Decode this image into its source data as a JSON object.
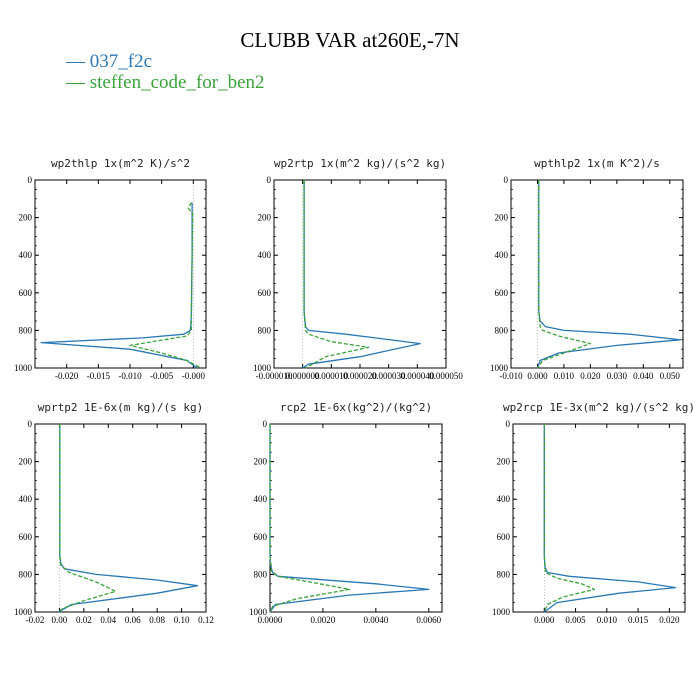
{
  "title": "CLUBB VAR at260E,-7N",
  "legend": [
    {
      "label": "037_f2c",
      "color": "#2a78b5"
    },
    {
      "label": "steffen_code_for_ben2",
      "color": "#3aa33a"
    }
  ],
  "chart_data": [
    {
      "type": "line",
      "title": "wp2thlp   1x(m^2 K)/s^2",
      "xlim": [
        -0.025,
        0.002
      ],
      "ylim": [
        1000,
        0
      ],
      "xticks": [
        -0.02,
        -0.015,
        -0.01,
        -0.005,
        0.0
      ],
      "xtick_labels": [
        "-0.020",
        "-0.015",
        "-0.010",
        "-0.005",
        "-0.000"
      ],
      "yticks": [
        0,
        200,
        400,
        600,
        800,
        1000
      ],
      "ytick_labels": [
        "0",
        "200",
        "400",
        "600",
        "800",
        "1000"
      ],
      "series": [
        {
          "name": "037_f2c",
          "style": "solid",
          "x": [
            -0.0002,
            -0.0002,
            -0.0003,
            -0.0004,
            -0.0005,
            -0.0015,
            -0.008,
            -0.024,
            -0.01,
            -0.001,
            0.0006
          ],
          "y": [
            120,
            400,
            700,
            780,
            800,
            820,
            840,
            865,
            900,
            960,
            1000
          ]
        },
        {
          "name": "steffen_code_for_ben2",
          "style": "dashed",
          "x": [
            -0.0003,
            -0.0008,
            -0.0001,
            -0.0002,
            -0.0003,
            -0.0003,
            -0.001,
            -0.01,
            -0.005,
            -0.001,
            0.0012
          ],
          "y": [
            120,
            150,
            180,
            400,
            700,
            800,
            830,
            880,
            920,
            960,
            1000
          ]
        }
      ]
    },
    {
      "type": "line",
      "title": "wp2rtp   1x(m^2 kg)/(s^2 kg)",
      "xlim": [
        -1e-05,
        5e-05
      ],
      "ylim": [
        1000,
        0
      ],
      "xticks": [
        -1e-05,
        0.0,
        1e-05,
        2e-05,
        3e-05,
        4e-05,
        5e-05
      ],
      "xtick_labels": [
        "-0.000010",
        "0.000000",
        "0.000010",
        "0.000020",
        "0.000030",
        "0.000040",
        "0.000050"
      ],
      "yticks": [
        0,
        200,
        400,
        600,
        800,
        1000
      ],
      "ytick_labels": [
        "0",
        "200",
        "400",
        "600",
        "800",
        "1000"
      ],
      "series": [
        {
          "name": "037_f2c",
          "style": "solid",
          "x": [
            5e-07,
            5e-07,
            1e-06,
            2e-06,
            1.5e-05,
            4.1e-05,
            2e-05,
            2e-06,
            0.0
          ],
          "y": [
            0,
            700,
            780,
            800,
            820,
            870,
            940,
            980,
            1000
          ]
        },
        {
          "name": "steffen_code_for_ben2",
          "style": "dashed",
          "x": [
            5e-07,
            5e-07,
            1e-06,
            2e-06,
            1e-05,
            2.3e-05,
            8e-06,
            1e-06
          ],
          "y": [
            0,
            700,
            800,
            820,
            860,
            890,
            940,
            1000
          ]
        }
      ]
    },
    {
      "type": "line",
      "title": "wpthlp2   1x(m K^2)/s",
      "xlim": [
        -0.01,
        0.055
      ],
      "ylim": [
        1000,
        0
      ],
      "xticks": [
        -0.01,
        0.0,
        0.01,
        0.02,
        0.03,
        0.04,
        0.05
      ],
      "xtick_labels": [
        "-0.010",
        "0.000",
        "0.010",
        "0.020",
        "0.030",
        "0.040",
        "0.050"
      ],
      "yticks": [
        0,
        200,
        400,
        600,
        800,
        1000
      ],
      "ytick_labels": [
        "0",
        "200",
        "400",
        "600",
        "800",
        "1000"
      ],
      "series": [
        {
          "name": "037_f2c",
          "style": "solid",
          "x": [
            0.0005,
            0.0005,
            0.001,
            0.003,
            0.01,
            0.035,
            0.054,
            0.03,
            0.008,
            0.001,
            0.0
          ],
          "y": [
            0,
            700,
            750,
            780,
            800,
            820,
            850,
            880,
            920,
            960,
            1000
          ]
        },
        {
          "name": "steffen_code_for_ben2",
          "style": "dashed",
          "x": [
            0.0005,
            0.0005,
            0.001,
            0.002,
            0.008,
            0.02,
            0.01,
            0.002,
            0.0
          ],
          "y": [
            0,
            700,
            780,
            800,
            830,
            870,
            920,
            960,
            1000
          ]
        }
      ]
    },
    {
      "type": "line",
      "title": "wprtp2   1E-6x(m kg)/(s kg)",
      "xlim": [
        -0.02,
        0.12
      ],
      "ylim": [
        1000,
        0
      ],
      "xticks": [
        -0.02,
        0.0,
        0.02,
        0.04,
        0.06,
        0.08,
        0.1,
        0.12
      ],
      "xtick_labels": [
        "-0.02",
        "0.00",
        "0.02",
        "0.04",
        "0.06",
        "0.08",
        "0.10",
        "0.12"
      ],
      "yticks": [
        0,
        200,
        400,
        600,
        800,
        1000
      ],
      "ytick_labels": [
        "0",
        "200",
        "400",
        "600",
        "800",
        "1000"
      ],
      "series": [
        {
          "name": "037_f2c",
          "style": "solid",
          "x": [
            0.0003,
            0.0003,
            0.001,
            0.004,
            0.03,
            0.08,
            0.113,
            0.08,
            0.01,
            -0.001
          ],
          "y": [
            0,
            700,
            740,
            770,
            800,
            830,
            860,
            900,
            960,
            1000
          ]
        },
        {
          "name": "steffen_code_for_ben2",
          "style": "dashed",
          "x": [
            0.0003,
            0.0003,
            0.001,
            0.008,
            0.03,
            0.046,
            0.02,
            0.003,
            -0.001
          ],
          "y": [
            0,
            700,
            750,
            790,
            840,
            890,
            940,
            980,
            1000
          ]
        }
      ]
    },
    {
      "type": "line",
      "title": "rcp2   1E-6x(kg^2)/(kg^2)",
      "xlim": [
        0.0,
        0.0065
      ],
      "ylim": [
        1000,
        0
      ],
      "xticks": [
        0.0,
        0.002,
        0.004,
        0.006
      ],
      "xtick_labels": [
        "0.0000",
        "0.0020",
        "0.0040",
        "0.0060"
      ],
      "yticks": [
        0,
        200,
        400,
        600,
        800,
        1000
      ],
      "ytick_labels": [
        "0",
        "200",
        "400",
        "600",
        "800",
        "1000"
      ],
      "series": [
        {
          "name": "037_f2c",
          "style": "solid",
          "x": [
            0.0,
            0.0,
            2e-05,
            0.0001,
            0.0003,
            0.004,
            0.006,
            0.003,
            0.0002,
            0.0
          ],
          "y": [
            0,
            700,
            750,
            790,
            810,
            850,
            880,
            910,
            960,
            1000
          ]
        },
        {
          "name": "steffen_code_for_ben2",
          "style": "dashed",
          "x": [
            0.0,
            0.0,
            5e-05,
            0.0003,
            0.0015,
            0.003,
            0.001,
            0.0001,
            0.0
          ],
          "y": [
            0,
            700,
            780,
            810,
            840,
            880,
            930,
            970,
            1000
          ]
        }
      ]
    },
    {
      "type": "line",
      "title": "wp2rcp   1E-3x(m^2 kg)/(s^2 kg)",
      "xlim": [
        -0.005,
        0.0225
      ],
      "ylim": [
        1000,
        0
      ],
      "xticks": [
        0.0,
        0.005,
        0.01,
        0.015,
        0.02
      ],
      "xtick_labels": [
        "0.000",
        "0.005",
        "0.010",
        "0.015",
        "0.020"
      ],
      "yticks": [
        0,
        200,
        400,
        600,
        800,
        1000
      ],
      "ytick_labels": [
        "0",
        "200",
        "400",
        "600",
        "800",
        "1000"
      ],
      "series": [
        {
          "name": "037_f2c",
          "style": "solid",
          "x": [
            0.0,
            0.0,
            0.0001,
            0.0005,
            0.004,
            0.015,
            0.021,
            0.012,
            0.002,
            0.0
          ],
          "y": [
            0,
            700,
            760,
            790,
            810,
            840,
            870,
            900,
            950,
            1000
          ]
        },
        {
          "name": "steffen_code_for_ben2",
          "style": "dashed",
          "x": [
            0.0,
            0.0,
            0.0002,
            0.002,
            0.006,
            0.008,
            0.003,
            0.0005,
            0.0
          ],
          "y": [
            0,
            700,
            790,
            820,
            850,
            880,
            920,
            960,
            1000
          ]
        }
      ]
    }
  ]
}
